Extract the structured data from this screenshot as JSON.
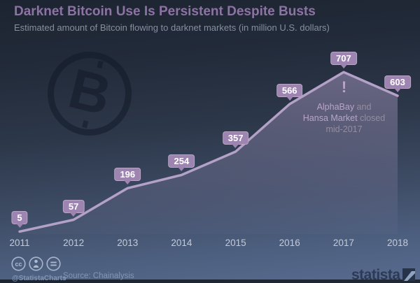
{
  "header": {
    "title": "Darknet Bitcoin Use Is Persistent Despite Busts",
    "subtitle": "Estimated amount of Bitcoin flowing to darknet markets (in million U.S. dollars)"
  },
  "chart_data": {
    "type": "area",
    "categories": [
      "2011",
      "2012",
      "2013",
      "2014",
      "2015",
      "2016",
      "2017",
      "2018"
    ],
    "values": [
      5,
      57,
      196,
      254,
      357,
      566,
      707,
      603
    ],
    "title": "Darknet Bitcoin Use Is Persistent Despite Busts",
    "subtitle": "Estimated amount of Bitcoin flowing to darknet markets (in million U.S. dollars)",
    "unit": "million U.S. dollars",
    "xlabel": "",
    "ylabel": "",
    "ylim": [
      0,
      750
    ],
    "grid": false,
    "legend": "none",
    "data_labels": true,
    "annotation_text": "AlphaBay and Hansa Market closed mid-2017",
    "colors": {
      "line": "#b4a1c7",
      "area_fill_top": "rgba(173,157,199,0.50)",
      "area_fill_bottom": "rgba(173,157,199,0.03)",
      "value_label_bg": "#9e84b0",
      "title": "#8d73a3",
      "background_top": "#1f2734",
      "background_bottom": "#56698c"
    }
  },
  "annotation": {
    "mark": "!",
    "line1_em": "AlphaBay",
    "line1_rest": " and",
    "line2_em": "Hansa Market",
    "line2_rest": " closed",
    "line3": "mid-2017"
  },
  "watermark": {
    "glyph": "B"
  },
  "footer": {
    "handle": "@StatistaCharts",
    "source": "Source: Chainalysis",
    "brand": "statista",
    "license_icons": [
      "cc-icon",
      "attribution-person-icon",
      "equals-icon"
    ]
  }
}
